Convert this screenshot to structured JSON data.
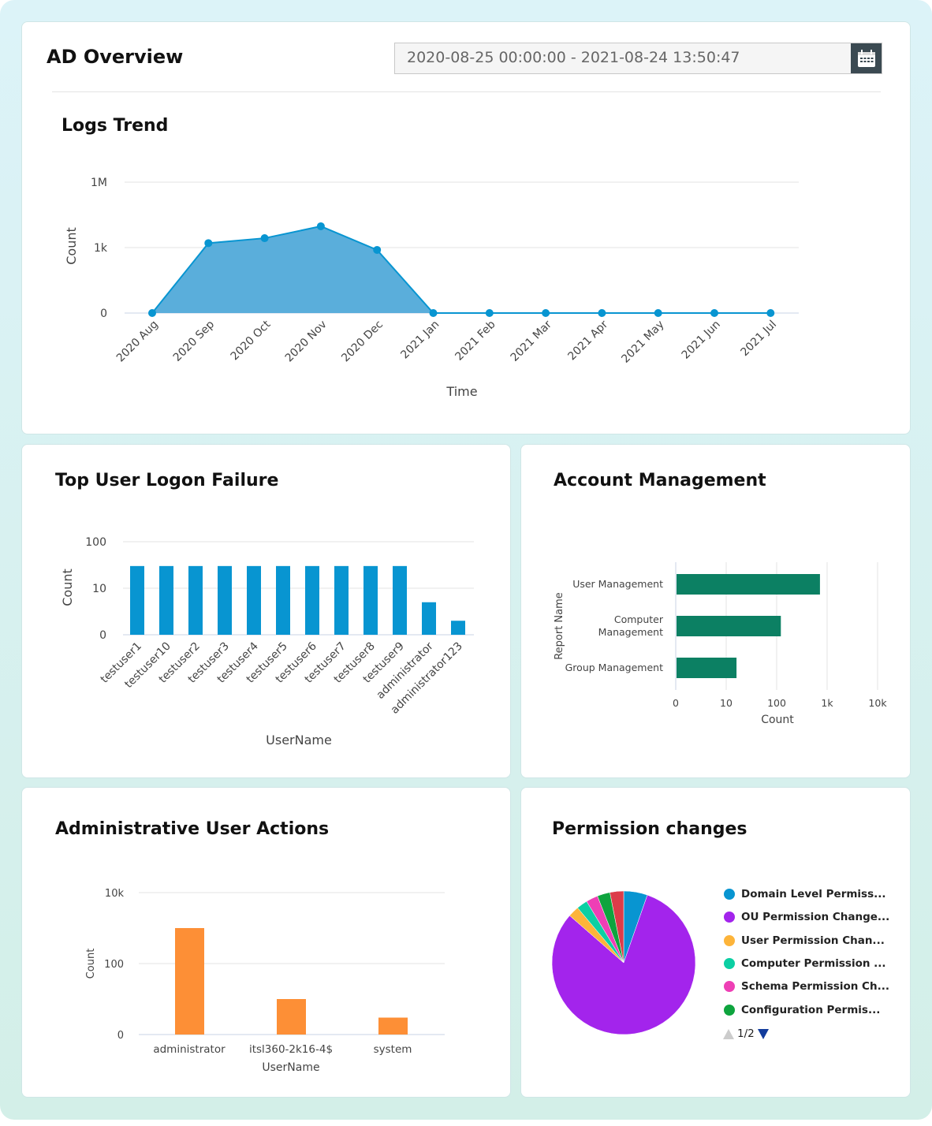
{
  "header": {
    "title": "AD Overview",
    "date_range": "2020-08-25 00:00:00 - 2021-08-24 13:50:47",
    "calendar_icon": "calendar-icon"
  },
  "logs_trend": {
    "title": "Logs Trend",
    "chart_data": {
      "type": "area",
      "xlabel": "Time",
      "ylabel": "Count",
      "yscale": "log",
      "ytick_labels": [
        "0",
        "1k",
        "1M"
      ],
      "categories": [
        "2020 Aug",
        "2020 Sep",
        "2020 Oct",
        "2020 Nov",
        "2020 Dec",
        "2021 Jan",
        "2021 Feb",
        "2021 Mar",
        "2021 Apr",
        "2021 May",
        "2021 Jun",
        "2021 Jul"
      ],
      "values": [
        0,
        1600,
        2700,
        9500,
        780,
        0,
        0,
        0,
        0,
        0,
        0,
        0
      ],
      "color": "#0895d1",
      "grid": true
    }
  },
  "logon_failure": {
    "title": "Top User Logon Failure",
    "chart_data": {
      "type": "bar",
      "xlabel": "UserName",
      "ylabel": "Count",
      "yscale": "log",
      "ytick_labels": [
        "0",
        "10",
        "100"
      ],
      "categories": [
        "testuser1",
        "testuser10",
        "testuser2",
        "testuser3",
        "testuser4",
        "testuser5",
        "testuser6",
        "testuser7",
        "testuser8",
        "testuser9",
        "administrator",
        "administrator123"
      ],
      "values": [
        29,
        29,
        29,
        29,
        29,
        29,
        29,
        29,
        29,
        29,
        4,
        1
      ],
      "color": "#0895d1",
      "grid": true
    }
  },
  "account_mgmt": {
    "title": "Account Management",
    "chart_data": {
      "type": "bar",
      "orientation": "horizontal",
      "xlabel": "Count",
      "ylabel": "Report Name",
      "xscale": "log",
      "xtick_labels": [
        "0",
        "10",
        "100",
        "1k",
        "10k"
      ],
      "categories": [
        [
          "User Management"
        ],
        [
          "Computer",
          "Management"
        ],
        [
          "Group Management"
        ]
      ],
      "values": [
        720,
        120,
        15
      ],
      "color": "#0c8063",
      "grid": true
    }
  },
  "admin_actions": {
    "title": "Administrative User Actions",
    "chart_data": {
      "type": "bar",
      "xlabel": "UserName",
      "ylabel": "Count",
      "yscale": "log",
      "ytick_labels": [
        "0",
        "100",
        "10k"
      ],
      "categories": [
        "administrator",
        "itsl360-2k16-4$",
        "system"
      ],
      "values": [
        1000,
        9,
        2
      ],
      "color": "#fd8f36",
      "grid": true
    }
  },
  "permission": {
    "title": "Permission changes",
    "chart_data": {
      "type": "pie",
      "slices": [
        {
          "name": "Domain Level Permiss...",
          "value": 5.2,
          "color": "#0895d1"
        },
        {
          "name": "OU Permission Change...",
          "value": 78.8,
          "color": "#a324ec"
        },
        {
          "name": "User Permission Chan...",
          "value": 2.4,
          "color": "#fdb43a"
        },
        {
          "name": "Computer Permission ...",
          "value": 2.4,
          "color": "#0ccfa3"
        },
        {
          "name": "Schema Permission Ch...",
          "value": 2.6,
          "color": "#ee3fb5"
        },
        {
          "name": "Configuration Permis...",
          "value": 2.8,
          "color": "#0ea43e"
        },
        {
          "value": 3.0,
          "color": "#dc3c49"
        }
      ],
      "legend_page": "1/2"
    }
  }
}
